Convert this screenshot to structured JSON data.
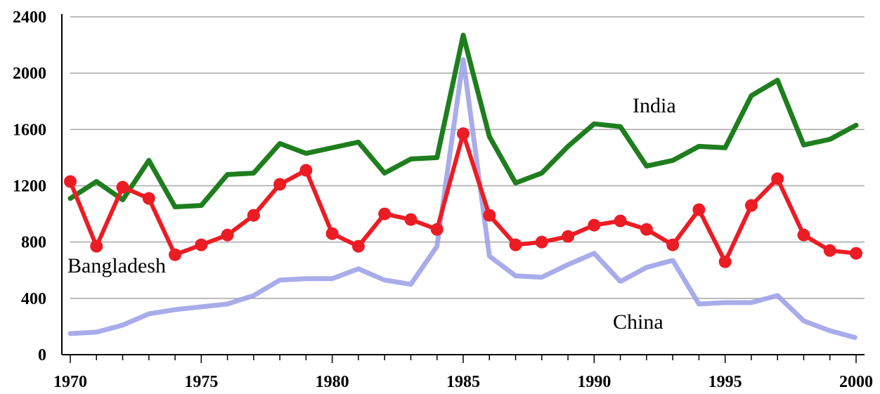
{
  "chart_data": {
    "type": "line",
    "title": "",
    "xlabel": "",
    "ylabel": "",
    "xlim": [
      1970,
      2000
    ],
    "ylim": [
      0,
      2400
    ],
    "grid": true,
    "x_ticks": [
      "1970",
      "1975",
      "1980",
      "1985",
      "1990",
      "1995",
      "2000"
    ],
    "y_ticks": [
      "0",
      "400",
      "800",
      "1200",
      "1600",
      "2000",
      "2400"
    ],
    "x": [
      1970,
      1971,
      1972,
      1973,
      1974,
      1975,
      1976,
      1977,
      1978,
      1979,
      1980,
      1981,
      1982,
      1983,
      1984,
      1985,
      1986,
      1987,
      1988,
      1989,
      1990,
      1991,
      1992,
      1993,
      1994,
      1995,
      1996,
      1997,
      1998,
      1999,
      2000
    ],
    "series": [
      {
        "name": "India",
        "color": "#1e7e1e",
        "values": [
          1110,
          1230,
          1100,
          1380,
          1050,
          1060,
          1280,
          1290,
          1500,
          1430,
          1470,
          1510,
          1290,
          1390,
          1400,
          2270,
          1550,
          1220,
          1290,
          1480,
          1640,
          1620,
          1340,
          1380,
          1480,
          1470,
          1840,
          1950,
          1490,
          1530,
          1630
        ]
      },
      {
        "name": "Bangladesh",
        "color": "#ec1c24",
        "values": [
          1230,
          770,
          1190,
          1110,
          710,
          780,
          850,
          990,
          1210,
          1310,
          860,
          770,
          1000,
          960,
          890,
          1570,
          990,
          780,
          800,
          840,
          920,
          950,
          890,
          780,
          1030,
          660,
          1060,
          1250,
          850,
          740,
          720
        ]
      },
      {
        "name": "China",
        "color": "#9a9ee6",
        "values": [
          150,
          160,
          210,
          290,
          320,
          340,
          360,
          420,
          530,
          540,
          540,
          610,
          530,
          500,
          770,
          2100,
          700,
          560,
          550,
          640,
          720,
          520,
          620,
          670,
          360,
          370,
          370,
          420,
          240,
          170,
          120
        ]
      }
    ]
  }
}
